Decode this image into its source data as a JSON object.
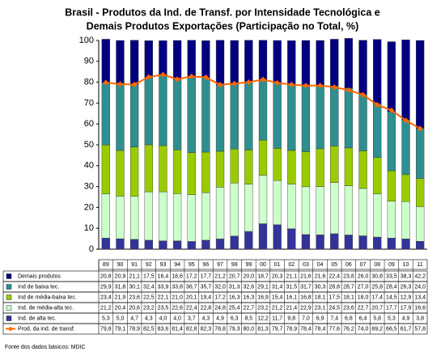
{
  "chart_data": {
    "type": "bar",
    "stacked": true,
    "title": [
      "Brasil - Produtos da Ind. de Transf. por Intensidade Tecnológica e",
      "Demais Produtos Exportações (Participação no Total, %)"
    ],
    "source": "Fonte dos dados básicos: MDIC",
    "categories": [
      "89",
      "90",
      "91",
      "92",
      "93",
      "94",
      "95",
      "96",
      "97",
      "98",
      "99",
      "00",
      "01",
      "02",
      "03",
      "04",
      "05",
      "06",
      "07",
      "08",
      "09",
      "10",
      "11"
    ],
    "ylim": [
      0,
      100
    ],
    "yticks": [
      0,
      10,
      20,
      30,
      40,
      50,
      60,
      70,
      80,
      90,
      100
    ],
    "series": [
      {
        "name": "Demais produtos",
        "type": "bar",
        "color": "#000080",
        "values": [
          20.8,
          20.9,
          21.1,
          17.5,
          16.4,
          18.6,
          17.2,
          17.7,
          21.2,
          20.7,
          20.0,
          18.7,
          20.3,
          21.1,
          21.6,
          21.6,
          22.4,
          23.8,
          26.0,
          30.8,
          33.5,
          38.3,
          42.2
        ],
        "value_labels": [
          "20,8",
          "20,9",
          "21,1",
          "17,5",
          "16,4",
          "18,6",
          "17,2",
          "17,7",
          "21,2",
          "20,7",
          "20,0",
          "18,7",
          "20,3",
          "21,1",
          "21,6",
          "21,6",
          "22,4",
          "23,8",
          "26,0",
          "30,8",
          "33,5",
          "38,3",
          "42,2"
        ]
      },
      {
        "name": "Ind de baixa tec.",
        "type": "bar",
        "color": "#2f8f8f",
        "values": [
          29.9,
          31.8,
          30.1,
          32.4,
          33.9,
          33.8,
          36.7,
          35.7,
          32.0,
          31.3,
          32.6,
          29.1,
          31.4,
          31.5,
          31.7,
          30.3,
          28.8,
          28.7,
          27.0,
          25.8,
          28.4,
          26.3,
          24.0
        ],
        "value_labels": [
          "29,9",
          "31,8",
          "30,1",
          "32,4",
          "33,9",
          "33,8",
          "36,7",
          "35,7",
          "32,0",
          "31,3",
          "32,6",
          "29,1",
          "31,4",
          "31,5",
          "31,7",
          "30,3",
          "28,8",
          "28,7",
          "27,0",
          "25,8",
          "28,4",
          "26,3",
          "24,0"
        ]
      },
      {
        "name": "Ind de média-baixa tec.",
        "type": "bar",
        "color": "#99cc00",
        "values": [
          23.4,
          21.9,
          23.6,
          22.5,
          22.1,
          21.0,
          20.1,
          19.4,
          17.2,
          16.3,
          16.3,
          16.9,
          15.4,
          16.1,
          16.8,
          18.1,
          17.5,
          18.1,
          18.0,
          17.4,
          14.5,
          12.9,
          13.4
        ],
        "value_labels": [
          "23,4",
          "21,9",
          "23,6",
          "22,5",
          "22,1",
          "21,0",
          "20,1",
          "19,4",
          "17,2",
          "16,3",
          "16,3",
          "16,9",
          "15,4",
          "16,1",
          "16,8",
          "18,1",
          "17,5",
          "18,1",
          "18,0",
          "17,4",
          "14,5",
          "12,9",
          "13,4"
        ]
      },
      {
        "name": "Ind. de média-alta tec.",
        "type": "bar",
        "color": "#ccffcc",
        "values": [
          21.2,
          20.4,
          20.6,
          23.2,
          23.5,
          22.6,
          22.4,
          22.8,
          24.8,
          25.4,
          22.7,
          23.2,
          21.2,
          21.4,
          22.9,
          23.1,
          24.5,
          23.6,
          22.7,
          20.7,
          17.7,
          17.9,
          16.6
        ],
        "value_labels": [
          "21,2",
          "20,4",
          "20,6",
          "23,2",
          "23,5",
          "22,6",
          "22,4",
          "22,8",
          "24,8",
          "25,4",
          "22,7",
          "23,2",
          "21,2",
          "21,4",
          "22,9",
          "23,1",
          "24,5",
          "23,6",
          "22,7",
          "20,7",
          "17,7",
          "17,9",
          "16,6"
        ]
      },
      {
        "name": "Ind. de alta tec.",
        "type": "bar",
        "color": "#333399",
        "values": [
          5.3,
          5.0,
          4.7,
          4.3,
          4.0,
          4.0,
          3.7,
          4.3,
          4.9,
          6.3,
          8.5,
          12.2,
          11.7,
          9.8,
          7.0,
          6.9,
          7.4,
          6.8,
          6.4,
          5.8,
          5.3,
          4.9,
          3.8
        ],
        "value_labels": [
          "5,3",
          "5,0",
          "4,7",
          "4,3",
          "4,0",
          "4,0",
          "3,7",
          "4,3",
          "4,9",
          "6,3",
          "8,5",
          "12,2",
          "11,7",
          "9,8",
          "7,0",
          "6,9",
          "7,4",
          "6,8",
          "6,4",
          "5,8",
          "5,3",
          "4,9",
          "3,8"
        ]
      },
      {
        "name": "Prod. da ind. de transf.",
        "type": "line",
        "color": "#ff6600",
        "values": [
          79.8,
          79.1,
          78.9,
          82.5,
          83.6,
          81.4,
          82.8,
          82.3,
          78.8,
          79.3,
          80.0,
          81.3,
          79.7,
          78.9,
          78.4,
          78.4,
          77.6,
          76.2,
          74.0,
          69.2,
          66.5,
          61.7,
          57.8
        ],
        "value_labels": [
          "79,8",
          "79,1",
          "78,9",
          "82,5",
          "83,6",
          "81,4",
          "82,8",
          "82,3",
          "78,8",
          "79,3",
          "80,0",
          "81,3",
          "79,7",
          "78,9",
          "78,4",
          "78,4",
          "77,6",
          "76,2",
          "74,0",
          "69,2",
          "66,5",
          "61,7",
          "57,8"
        ]
      }
    ]
  }
}
